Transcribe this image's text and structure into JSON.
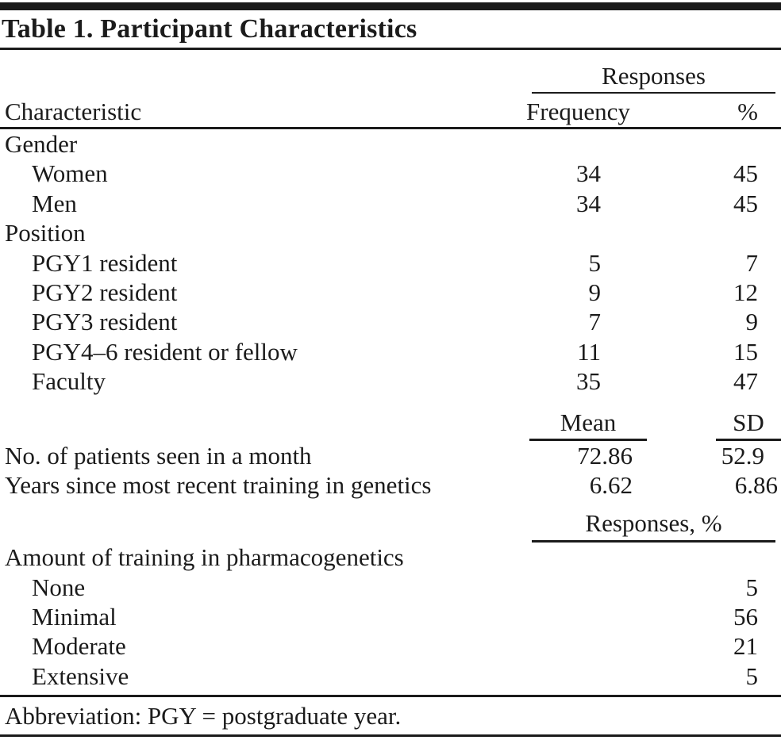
{
  "table": {
    "title": "Table 1. Participant Characteristics",
    "responses_spanner": "Responses",
    "columns": {
      "characteristic": "Characteristic",
      "frequency": "Frequency",
      "percent": "%"
    },
    "gender": {
      "label": "Gender",
      "rows": [
        {
          "label": "Women",
          "frequency": "34",
          "percent": "45"
        },
        {
          "label": "Men",
          "frequency": "34",
          "percent": "45"
        }
      ]
    },
    "position": {
      "label": "Position",
      "rows": [
        {
          "label": "PGY1 resident",
          "frequency": "5",
          "percent": "7"
        },
        {
          "label": "PGY2 resident",
          "frequency": "9",
          "percent": "12"
        },
        {
          "label": "PGY3 resident",
          "frequency": "7",
          "percent": "9"
        },
        {
          "label": "PGY4–6 resident or fellow",
          "frequency": "11",
          "percent": "15"
        },
        {
          "label": "Faculty",
          "frequency": "35",
          "percent": "47"
        }
      ]
    },
    "stats": {
      "mean_label": "Mean",
      "sd_label": "SD",
      "rows": [
        {
          "label": "No. of patients seen in a month",
          "mean": "72.86",
          "sd": "52.9"
        },
        {
          "label": "Years since most recent training in genetics",
          "mean": "6.62",
          "sd": "6.86"
        }
      ]
    },
    "responses_pct_spanner": "Responses, %",
    "training": {
      "label": "Amount of training in pharmacogenetics",
      "rows": [
        {
          "label": "None",
          "percent": "5"
        },
        {
          "label": "Minimal",
          "percent": "56"
        },
        {
          "label": "Moderate",
          "percent": "21"
        },
        {
          "label": "Extensive",
          "percent": "5"
        }
      ]
    },
    "footnote": "Abbreviation: PGY = postgraduate year."
  },
  "colors": {
    "text": "#1b1b1b",
    "rule": "#1b1b1b",
    "background": "#ffffff"
  }
}
